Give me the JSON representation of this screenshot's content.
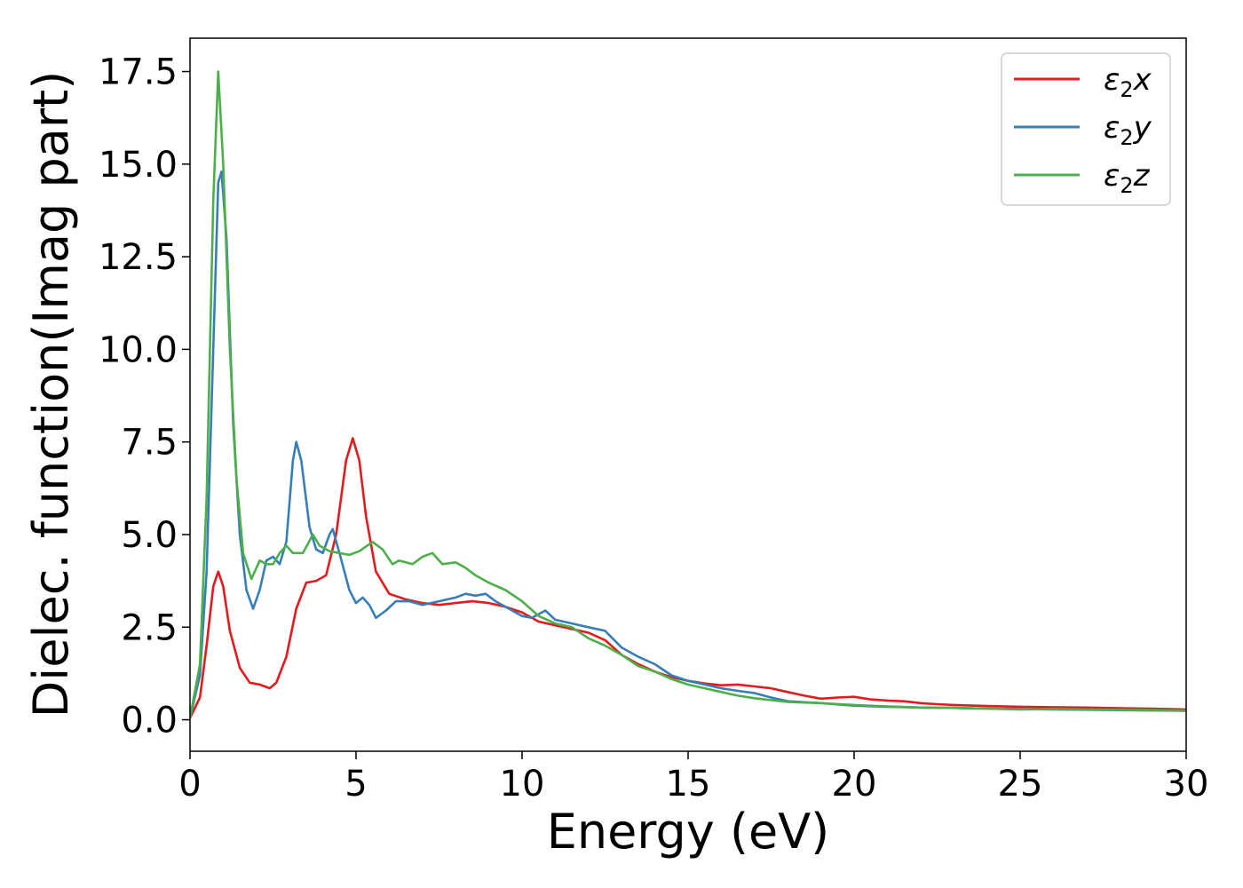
{
  "chart_data": {
    "type": "line",
    "title": "",
    "xlabel": "Energy (eV)",
    "ylabel": "Dielec. function(Imag part)",
    "xlim": [
      0,
      30
    ],
    "ylim": [
      -0.85,
      18.4
    ],
    "xticks": [
      0,
      5,
      10,
      15,
      20,
      25,
      30
    ],
    "xtick_labels": [
      "0",
      "5",
      "10",
      "15",
      "20",
      "25",
      "30"
    ],
    "yticks": [
      0.0,
      2.5,
      5.0,
      7.5,
      10.0,
      12.5,
      15.0,
      17.5
    ],
    "ytick_labels": [
      "0.0",
      "2.5",
      "5.0",
      "7.5",
      "10.0",
      "12.5",
      "15.0",
      "17.5"
    ],
    "grid": false,
    "legend_position": "top-right",
    "series": [
      {
        "name": "ε2x",
        "legend_base": "ε",
        "legend_sub": "2",
        "legend_suffix": "x",
        "color": "#e41a1c",
        "points": [
          [
            0,
            0.05
          ],
          [
            0.3,
            0.6
          ],
          [
            0.5,
            2.0
          ],
          [
            0.7,
            3.6
          ],
          [
            0.85,
            4.0
          ],
          [
            1.0,
            3.6
          ],
          [
            1.2,
            2.4
          ],
          [
            1.5,
            1.4
          ],
          [
            1.8,
            1.0
          ],
          [
            2.1,
            0.95
          ],
          [
            2.4,
            0.85
          ],
          [
            2.6,
            1.0
          ],
          [
            2.9,
            1.7
          ],
          [
            3.2,
            3.0
          ],
          [
            3.5,
            3.7
          ],
          [
            3.8,
            3.75
          ],
          [
            4.1,
            3.9
          ],
          [
            4.4,
            5.0
          ],
          [
            4.7,
            7.0
          ],
          [
            4.9,
            7.6
          ],
          [
            5.1,
            7.0
          ],
          [
            5.3,
            5.5
          ],
          [
            5.6,
            4.0
          ],
          [
            6.0,
            3.4
          ],
          [
            6.5,
            3.25
          ],
          [
            7.0,
            3.15
          ],
          [
            7.5,
            3.1
          ],
          [
            8.0,
            3.15
          ],
          [
            8.5,
            3.2
          ],
          [
            9.0,
            3.15
          ],
          [
            9.5,
            3.05
          ],
          [
            10.0,
            2.9
          ],
          [
            10.5,
            2.65
          ],
          [
            11.0,
            2.55
          ],
          [
            11.5,
            2.45
          ],
          [
            12.0,
            2.35
          ],
          [
            12.5,
            2.15
          ],
          [
            13.0,
            1.75
          ],
          [
            13.5,
            1.5
          ],
          [
            14.0,
            1.3
          ],
          [
            14.5,
            1.15
          ],
          [
            15.0,
            1.05
          ],
          [
            15.5,
            0.98
          ],
          [
            16.0,
            0.93
          ],
          [
            16.5,
            0.95
          ],
          [
            17.0,
            0.9
          ],
          [
            17.5,
            0.85
          ],
          [
            18.0,
            0.75
          ],
          [
            18.5,
            0.65
          ],
          [
            19.0,
            0.57
          ],
          [
            19.5,
            0.6
          ],
          [
            20.0,
            0.62
          ],
          [
            20.5,
            0.55
          ],
          [
            21.0,
            0.52
          ],
          [
            21.5,
            0.5
          ],
          [
            22.0,
            0.45
          ],
          [
            22.5,
            0.42
          ],
          [
            23.0,
            0.4
          ],
          [
            24.0,
            0.37
          ],
          [
            25.0,
            0.35
          ],
          [
            26.0,
            0.34
          ],
          [
            27.0,
            0.33
          ],
          [
            28.0,
            0.31
          ],
          [
            29.0,
            0.3
          ],
          [
            30.0,
            0.28
          ]
        ]
      },
      {
        "name": "ε2y",
        "legend_base": "ε",
        "legend_sub": "2",
        "legend_suffix": "y",
        "color": "#377eb8",
        "points": [
          [
            0,
            0.05
          ],
          [
            0.3,
            1.2
          ],
          [
            0.5,
            4.0
          ],
          [
            0.7,
            10.0
          ],
          [
            0.85,
            14.5
          ],
          [
            0.95,
            14.8
          ],
          [
            1.1,
            13.0
          ],
          [
            1.3,
            8.0
          ],
          [
            1.5,
            5.0
          ],
          [
            1.7,
            3.5
          ],
          [
            1.9,
            3.0
          ],
          [
            2.1,
            3.5
          ],
          [
            2.3,
            4.3
          ],
          [
            2.5,
            4.4
          ],
          [
            2.7,
            4.2
          ],
          [
            2.9,
            4.8
          ],
          [
            3.1,
            7.0
          ],
          [
            3.2,
            7.5
          ],
          [
            3.35,
            7.0
          ],
          [
            3.6,
            5.2
          ],
          [
            3.8,
            4.6
          ],
          [
            4.0,
            4.5
          ],
          [
            4.2,
            5.0
          ],
          [
            4.3,
            5.15
          ],
          [
            4.5,
            4.5
          ],
          [
            4.8,
            3.5
          ],
          [
            5.0,
            3.15
          ],
          [
            5.2,
            3.3
          ],
          [
            5.4,
            3.1
          ],
          [
            5.6,
            2.75
          ],
          [
            5.9,
            2.95
          ],
          [
            6.2,
            3.2
          ],
          [
            6.6,
            3.2
          ],
          [
            7.0,
            3.1
          ],
          [
            7.5,
            3.2
          ],
          [
            8.0,
            3.3
          ],
          [
            8.3,
            3.4
          ],
          [
            8.6,
            3.35
          ],
          [
            8.9,
            3.4
          ],
          [
            9.2,
            3.2
          ],
          [
            9.6,
            3.0
          ],
          [
            10.0,
            2.8
          ],
          [
            10.3,
            2.75
          ],
          [
            10.7,
            2.95
          ],
          [
            11.0,
            2.7
          ],
          [
            11.5,
            2.6
          ],
          [
            12.0,
            2.5
          ],
          [
            12.5,
            2.4
          ],
          [
            13.0,
            1.95
          ],
          [
            13.5,
            1.7
          ],
          [
            14.0,
            1.5
          ],
          [
            14.5,
            1.2
          ],
          [
            15.0,
            1.05
          ],
          [
            15.5,
            0.95
          ],
          [
            16.0,
            0.85
          ],
          [
            16.5,
            0.78
          ],
          [
            17.0,
            0.72
          ],
          [
            17.5,
            0.6
          ],
          [
            18.0,
            0.5
          ],
          [
            19.0,
            0.45
          ],
          [
            20.0,
            0.38
          ],
          [
            21.0,
            0.35
          ],
          [
            22.0,
            0.33
          ],
          [
            23.0,
            0.32
          ],
          [
            24.0,
            0.3
          ],
          [
            25.0,
            0.29
          ],
          [
            26.0,
            0.28
          ],
          [
            27.0,
            0.27
          ],
          [
            28.0,
            0.26
          ],
          [
            29.0,
            0.25
          ],
          [
            30.0,
            0.24
          ]
        ]
      },
      {
        "name": "ε2z",
        "legend_base": "ε",
        "legend_sub": "2",
        "legend_suffix": "z",
        "color": "#4daf4a",
        "points": [
          [
            0,
            0.05
          ],
          [
            0.3,
            1.5
          ],
          [
            0.5,
            6.0
          ],
          [
            0.7,
            14.0
          ],
          [
            0.85,
            17.5
          ],
          [
            1.0,
            15.0
          ],
          [
            1.2,
            10.0
          ],
          [
            1.4,
            6.5
          ],
          [
            1.6,
            4.5
          ],
          [
            1.85,
            3.8
          ],
          [
            2.1,
            4.3
          ],
          [
            2.3,
            4.2
          ],
          [
            2.5,
            4.2
          ],
          [
            2.7,
            4.5
          ],
          [
            2.9,
            4.7
          ],
          [
            3.1,
            4.5
          ],
          [
            3.4,
            4.5
          ],
          [
            3.7,
            5.0
          ],
          [
            3.9,
            4.7
          ],
          [
            4.2,
            4.55
          ],
          [
            4.5,
            4.5
          ],
          [
            4.8,
            4.45
          ],
          [
            5.1,
            4.55
          ],
          [
            5.5,
            4.8
          ],
          [
            5.8,
            4.6
          ],
          [
            6.1,
            4.2
          ],
          [
            6.3,
            4.3
          ],
          [
            6.7,
            4.2
          ],
          [
            7.0,
            4.4
          ],
          [
            7.3,
            4.5
          ],
          [
            7.6,
            4.2
          ],
          [
            8.0,
            4.25
          ],
          [
            8.3,
            4.1
          ],
          [
            8.6,
            3.9
          ],
          [
            9.0,
            3.7
          ],
          [
            9.5,
            3.5
          ],
          [
            10.0,
            3.2
          ],
          [
            10.5,
            2.8
          ],
          [
            11.0,
            2.6
          ],
          [
            11.5,
            2.5
          ],
          [
            12.0,
            2.2
          ],
          [
            12.5,
            2.0
          ],
          [
            13.0,
            1.75
          ],
          [
            13.5,
            1.45
          ],
          [
            14.0,
            1.3
          ],
          [
            14.5,
            1.1
          ],
          [
            15.0,
            0.95
          ],
          [
            15.5,
            0.85
          ],
          [
            16.0,
            0.75
          ],
          [
            16.5,
            0.65
          ],
          [
            17.0,
            0.58
          ],
          [
            18.0,
            0.48
          ],
          [
            19.0,
            0.45
          ],
          [
            20.0,
            0.4
          ],
          [
            21.0,
            0.36
          ],
          [
            22.0,
            0.33
          ],
          [
            23.0,
            0.32
          ],
          [
            24.0,
            0.3
          ],
          [
            25.0,
            0.28
          ],
          [
            26.0,
            0.29
          ],
          [
            27.0,
            0.28
          ],
          [
            28.0,
            0.27
          ],
          [
            29.0,
            0.26
          ],
          [
            30.0,
            0.25
          ]
        ]
      }
    ]
  }
}
